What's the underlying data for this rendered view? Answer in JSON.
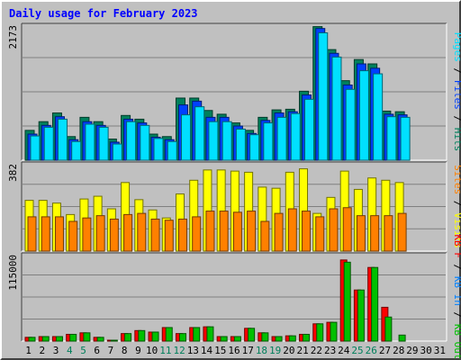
{
  "title": "Daily usage for February 2023",
  "colors": {
    "title": "#0000ff",
    "background": "#c0c0c0",
    "panel_light": "#ffffff",
    "panel_dark": "#404040",
    "gridline": "#808080",
    "hits": "#00805c",
    "files": "#0040ff",
    "pages": "#00e0ff",
    "visits": "#ffff00",
    "sites": "#ff8000",
    "kb_in": "#0080ff",
    "kb_out": "#00c000",
    "kb_f": "#ff0000",
    "weekend_day": "#00805c",
    "weekday_day": "#000000"
  },
  "chart_data": [
    {
      "type": "bar",
      "panel": "hits-files-pages",
      "ylabel_top": "2173",
      "ylim": [
        0,
        2173
      ],
      "grid": true,
      "right_label": [
        "Pages",
        "Files",
        "Hits"
      ],
      "categories": [
        "1",
        "2",
        "3",
        "4",
        "5",
        "6",
        "7",
        "8",
        "9",
        "10",
        "11",
        "12",
        "13",
        "14",
        "15",
        "16",
        "17",
        "18",
        "19",
        "20",
        "21",
        "22",
        "23",
        "24",
        "25",
        "26",
        "27",
        "28",
        "29",
        "30",
        "31"
      ],
      "series": [
        {
          "name": "Hits",
          "values": [
            480,
            620,
            760,
            380,
            690,
            620,
            340,
            720,
            660,
            420,
            380,
            1000,
            1000,
            800,
            740,
            600,
            480,
            690,
            810,
            820,
            1110,
            2150,
            1780,
            1280,
            1620,
            1550,
            790,
            780,
            null,
            null,
            null
          ]
        },
        {
          "name": "Files",
          "values": [
            420,
            560,
            700,
            330,
            620,
            560,
            290,
            660,
            600,
            370,
            330,
            890,
            950,
            690,
            690,
            550,
            430,
            640,
            760,
            780,
            1050,
            2120,
            1720,
            1210,
            1550,
            1480,
            740,
            730,
            null,
            null,
            null
          ]
        },
        {
          "name": "Pages",
          "values": [
            390,
            530,
            660,
            300,
            580,
            530,
            260,
            620,
            560,
            350,
            300,
            730,
            860,
            620,
            620,
            500,
            410,
            600,
            690,
            750,
            980,
            2050,
            1660,
            1140,
            1440,
            1390,
            700,
            690,
            null,
            null,
            null
          ]
        }
      ]
    },
    {
      "type": "bar",
      "panel": "visits-sites",
      "ylabel_top": "382",
      "ylim": [
        0,
        382
      ],
      "grid": true,
      "right_label": [
        "Sites",
        "Visits"
      ],
      "categories": [
        "1",
        "2",
        "3",
        "4",
        "5",
        "6",
        "7",
        "8",
        "9",
        "10",
        "11",
        "12",
        "13",
        "14",
        "15",
        "16",
        "17",
        "18",
        "19",
        "20",
        "21",
        "22",
        "23",
        "24",
        "25",
        "26",
        "27",
        "28",
        "29",
        "30",
        "31"
      ],
      "series": [
        {
          "name": "Visits",
          "values": [
            222,
            222,
            210,
            160,
            228,
            240,
            185,
            300,
            225,
            180,
            145,
            250,
            310,
            355,
            355,
            350,
            345,
            280,
            275,
            345,
            360,
            165,
            235,
            350,
            270,
            320,
            310,
            300,
            null,
            null,
            null
          ]
        },
        {
          "name": "Sites",
          "values": [
            150,
            150,
            150,
            130,
            145,
            155,
            140,
            160,
            165,
            140,
            135,
            140,
            150,
            175,
            175,
            170,
            175,
            130,
            165,
            185,
            175,
            150,
            185,
            190,
            155,
            155,
            155,
            165,
            null,
            null,
            null
          ]
        }
      ]
    },
    {
      "type": "bar",
      "panel": "kb-f-in-out",
      "ylabel_top": "115000",
      "ylim": [
        0,
        115000
      ],
      "grid": true,
      "right_label": [
        "KB F",
        "KB In",
        "KB Out"
      ],
      "categories": [
        "1",
        "2",
        "3",
        "4",
        "5",
        "6",
        "7",
        "8",
        "9",
        "10",
        "11",
        "12",
        "13",
        "14",
        "15",
        "16",
        "17",
        "18",
        "19",
        "20",
        "21",
        "22",
        "23",
        "24",
        "25",
        "26",
        "27",
        "28",
        "29",
        "30",
        "31"
      ],
      "series": [
        {
          "name": "KB F",
          "values": [
            5000,
            6000,
            6000,
            9000,
            11000,
            5000,
            1000,
            10000,
            14000,
            12000,
            18000,
            10000,
            18000,
            19000,
            6000,
            6000,
            17000,
            11000,
            6000,
            7000,
            9000,
            23000,
            25000,
            108000,
            68000,
            98000,
            45000,
            null,
            null,
            null,
            null
          ]
        },
        {
          "name": "KB In",
          "values": [
            0,
            0,
            0,
            0,
            0,
            0,
            0,
            0,
            0,
            0,
            0,
            0,
            0,
            0,
            0,
            0,
            0,
            0,
            0,
            0,
            0,
            0,
            0,
            0,
            0,
            0,
            0,
            0,
            null,
            null,
            null
          ]
        },
        {
          "name": "KB Out",
          "values": [
            5000,
            6000,
            6000,
            9000,
            11000,
            5000,
            1000,
            10000,
            14000,
            12000,
            18000,
            10000,
            18000,
            19000,
            6000,
            6000,
            17000,
            11000,
            6000,
            7000,
            9000,
            23000,
            25000,
            105000,
            68000,
            98000,
            32000,
            8000,
            null,
            null,
            null
          ]
        }
      ]
    }
  ],
  "days": [
    "1",
    "2",
    "3",
    "4",
    "5",
    "6",
    "7",
    "8",
    "9",
    "10",
    "11",
    "12",
    "13",
    "14",
    "15",
    "16",
    "17",
    "18",
    "19",
    "20",
    "21",
    "22",
    "23",
    "24",
    "25",
    "26",
    "27",
    "28",
    "29",
    "30",
    "31"
  ],
  "weekend_days": [
    "4",
    "5",
    "11",
    "12",
    "18",
    "19",
    "25",
    "26"
  ]
}
